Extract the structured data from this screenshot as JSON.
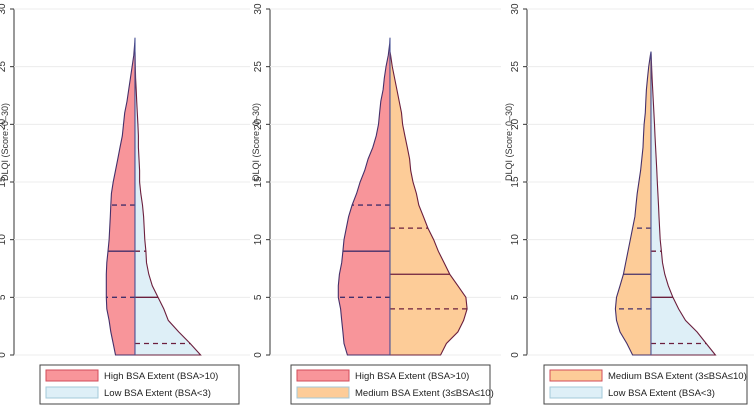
{
  "chart_data": [
    {
      "type": "split-violin",
      "ylabel": "DLQI (Score: 0–30)",
      "ylim": [
        0,
        30
      ],
      "yticks": [
        0,
        5,
        10,
        15,
        20,
        25,
        30
      ],
      "left": {
        "name": "High BSA Extent (BSA>10)",
        "color": "#f8959a",
        "edge": "#44306a",
        "median": 9,
        "q1": 5,
        "q3": 13,
        "max": 27.5,
        "profile": [
          [
            0,
            0.17
          ],
          [
            1,
            0.19
          ],
          [
            2,
            0.21
          ],
          [
            3,
            0.225
          ],
          [
            4,
            0.245
          ],
          [
            5,
            0.25
          ],
          [
            6,
            0.25
          ],
          [
            7,
            0.25
          ],
          [
            8,
            0.245
          ],
          [
            9,
            0.235
          ],
          [
            10,
            0.225
          ],
          [
            11,
            0.22
          ],
          [
            12,
            0.215
          ],
          [
            13,
            0.21
          ],
          [
            14,
            0.205
          ],
          [
            15,
            0.19
          ],
          [
            16,
            0.17
          ],
          [
            17,
            0.15
          ],
          [
            18,
            0.13
          ],
          [
            19,
            0.11
          ],
          [
            20,
            0.1
          ],
          [
            21,
            0.09
          ],
          [
            22,
            0.07
          ],
          [
            23,
            0.055
          ],
          [
            24,
            0.04
          ],
          [
            25,
            0.025
          ],
          [
            26,
            0.01
          ],
          [
            27,
            0.003
          ],
          [
            27.5,
            0
          ]
        ]
      },
      "right": {
        "name": "Low BSA Extent (BSA<3)",
        "color": "#deeff7",
        "edge": "#6b1f3d",
        "median": 5,
        "q1": 1,
        "q3": 9,
        "max": 26.3,
        "profile": [
          [
            0,
            0.57
          ],
          [
            1,
            0.48
          ],
          [
            2,
            0.38
          ],
          [
            3,
            0.29
          ],
          [
            4,
            0.25
          ],
          [
            5,
            0.2
          ],
          [
            6,
            0.15
          ],
          [
            7,
            0.12
          ],
          [
            8,
            0.1
          ],
          [
            9,
            0.095
          ],
          [
            10,
            0.085
          ],
          [
            11,
            0.08
          ],
          [
            12,
            0.075
          ],
          [
            13,
            0.065
          ],
          [
            14,
            0.05
          ],
          [
            15,
            0.04
          ],
          [
            16,
            0.04
          ],
          [
            17,
            0.035
          ],
          [
            18,
            0.03
          ],
          [
            19,
            0.03
          ],
          [
            20,
            0.025
          ],
          [
            21,
            0.02
          ],
          [
            22,
            0.015
          ],
          [
            23,
            0.01
          ],
          [
            24,
            0.005
          ],
          [
            25,
            0.003
          ],
          [
            26,
            0.001
          ],
          [
            26.3,
            0
          ]
        ]
      }
    },
    {
      "type": "split-violin",
      "ylabel": "DLQI (Score: 0–30)",
      "ylim": [
        0,
        30
      ],
      "yticks": [
        0,
        5,
        10,
        15,
        20,
        25,
        30
      ],
      "left": {
        "name": "High BSA Extent (BSA>10)",
        "color": "#f8959a",
        "edge": "#44306a",
        "median": 9,
        "q1": 5,
        "q3": 13,
        "max": 27.5,
        "profile": [
          [
            0,
            0.37
          ],
          [
            1,
            0.4
          ],
          [
            2,
            0.41
          ],
          [
            3,
            0.42
          ],
          [
            4,
            0.43
          ],
          [
            5,
            0.45
          ],
          [
            6,
            0.45
          ],
          [
            7,
            0.44
          ],
          [
            8,
            0.42
          ],
          [
            9,
            0.41
          ],
          [
            10,
            0.4
          ],
          [
            11,
            0.38
          ],
          [
            12,
            0.36
          ],
          [
            13,
            0.33
          ],
          [
            14,
            0.29
          ],
          [
            15,
            0.26
          ],
          [
            16,
            0.22
          ],
          [
            17,
            0.19
          ],
          [
            18,
            0.15
          ],
          [
            19,
            0.12
          ],
          [
            20,
            0.1
          ],
          [
            21,
            0.09
          ],
          [
            22,
            0.08
          ],
          [
            23,
            0.06
          ],
          [
            24,
            0.05
          ],
          [
            25,
            0.035
          ],
          [
            26,
            0.015
          ],
          [
            27,
            0.003
          ],
          [
            27.5,
            0
          ]
        ]
      },
      "right": {
        "name": "Medium BSA Extent (3≤BSA≤10)",
        "color": "#fdcc98",
        "edge": "#6b1f3d",
        "median": 7,
        "q1": 4,
        "q3": 11,
        "max": 26.3,
        "profile": [
          [
            0,
            0.44
          ],
          [
            1,
            0.49
          ],
          [
            2,
            0.59
          ],
          [
            3,
            0.64
          ],
          [
            4,
            0.67
          ],
          [
            5,
            0.66
          ],
          [
            6,
            0.59
          ],
          [
            7,
            0.52
          ],
          [
            8,
            0.47
          ],
          [
            9,
            0.42
          ],
          [
            10,
            0.38
          ],
          [
            11,
            0.33
          ],
          [
            12,
            0.29
          ],
          [
            13,
            0.25
          ],
          [
            14,
            0.23
          ],
          [
            15,
            0.2
          ],
          [
            16,
            0.18
          ],
          [
            17,
            0.17
          ],
          [
            18,
            0.15
          ],
          [
            19,
            0.13
          ],
          [
            20,
            0.11
          ],
          [
            21,
            0.1
          ],
          [
            22,
            0.08
          ],
          [
            23,
            0.06
          ],
          [
            24,
            0.04
          ],
          [
            25,
            0.02
          ],
          [
            26,
            0.005
          ],
          [
            26.3,
            0
          ]
        ]
      }
    },
    {
      "type": "split-violin",
      "ylabel": "DLQI (Score: 0–30)",
      "ylim": [
        0,
        30
      ],
      "yticks": [
        0,
        5,
        10,
        15,
        20,
        25,
        30
      ],
      "left": {
        "name": "Medium BSA Extent (3≤BSA≤10)",
        "color": "#fdcc98",
        "edge": "#44306a",
        "median": 7,
        "q1": 4,
        "q3": 11,
        "max": 26.3,
        "profile": [
          [
            0,
            0.16
          ],
          [
            1,
            0.21
          ],
          [
            2,
            0.27
          ],
          [
            3,
            0.3
          ],
          [
            4,
            0.31
          ],
          [
            5,
            0.3
          ],
          [
            6,
            0.27
          ],
          [
            7,
            0.24
          ],
          [
            8,
            0.22
          ],
          [
            9,
            0.2
          ],
          [
            10,
            0.18
          ],
          [
            11,
            0.16
          ],
          [
            12,
            0.14
          ],
          [
            13,
            0.13
          ],
          [
            14,
            0.12
          ],
          [
            15,
            0.105
          ],
          [
            16,
            0.09
          ],
          [
            17,
            0.08
          ],
          [
            18,
            0.07
          ],
          [
            19,
            0.065
          ],
          [
            20,
            0.06
          ],
          [
            21,
            0.05
          ],
          [
            22,
            0.045
          ],
          [
            23,
            0.04
          ],
          [
            24,
            0.03
          ],
          [
            25,
            0.02
          ],
          [
            26,
            0.005
          ],
          [
            26.3,
            0
          ]
        ]
      },
      "right": {
        "name": "Low BSA Extent (BSA<3)",
        "color": "#deeff7",
        "edge": "#6b1f3d",
        "median": 5,
        "q1": 1,
        "q3": 9,
        "max": 26.3,
        "profile": [
          [
            0,
            0.56
          ],
          [
            1,
            0.48
          ],
          [
            2,
            0.4
          ],
          [
            3,
            0.3
          ],
          [
            4,
            0.24
          ],
          [
            5,
            0.19
          ],
          [
            6,
            0.15
          ],
          [
            7,
            0.12
          ],
          [
            8,
            0.1
          ],
          [
            9,
            0.09
          ],
          [
            10,
            0.08
          ],
          [
            11,
            0.075
          ],
          [
            12,
            0.07
          ],
          [
            13,
            0.065
          ],
          [
            14,
            0.06
          ],
          [
            15,
            0.055
          ],
          [
            16,
            0.05
          ],
          [
            17,
            0.045
          ],
          [
            18,
            0.04
          ],
          [
            19,
            0.035
          ],
          [
            20,
            0.03
          ],
          [
            21,
            0.025
          ],
          [
            22,
            0.02
          ],
          [
            23,
            0.015
          ],
          [
            24,
            0.01
          ],
          [
            25,
            0.005
          ],
          [
            26,
            0.002
          ],
          [
            26.3,
            0
          ]
        ]
      }
    }
  ]
}
